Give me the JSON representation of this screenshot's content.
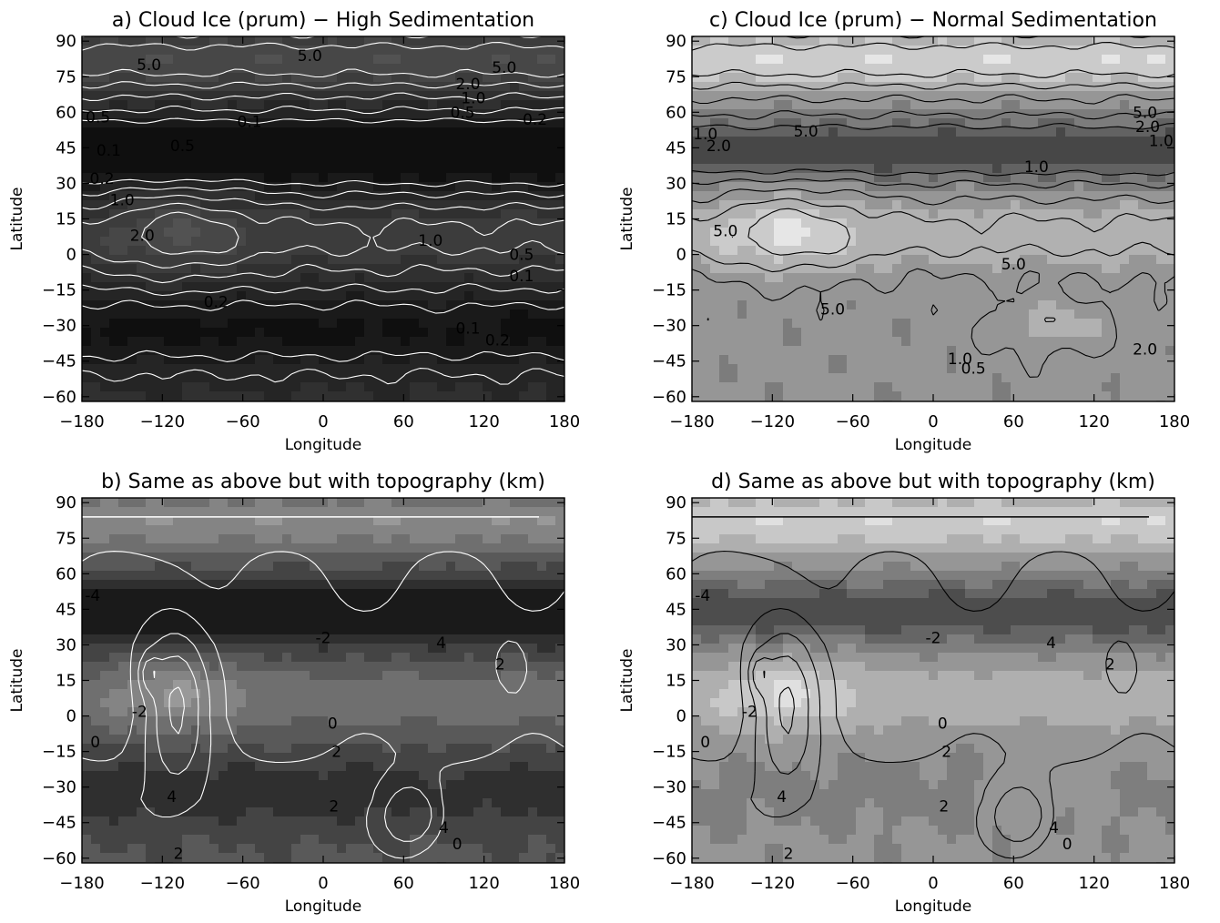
{
  "panels": [
    {
      "title": "a) Cloud Ice (prum) − High Sedimentation",
      "xlabel": "Longitude",
      "ylabel": "Latitude",
      "contour_color": "#ffffff",
      "shade_range": [
        0.06,
        0.32
      ],
      "bias": 0.8,
      "labels": [
        {
          "text": "5.0",
          "lon": -130,
          "lat": 80
        },
        {
          "text": "5.0",
          "lon": -10,
          "lat": 84
        },
        {
          "text": "5.0",
          "lon": 135,
          "lat": 79
        },
        {
          "text": "2.0",
          "lon": 108,
          "lat": 72
        },
        {
          "text": "1.0",
          "lon": 112,
          "lat": 66
        },
        {
          "text": "0.5",
          "lon": 104,
          "lat": 60
        },
        {
          "text": "0.2",
          "lon": 158,
          "lat": 57
        },
        {
          "text": "0.1",
          "lon": -55,
          "lat": 56
        },
        {
          "text": "0.5",
          "lon": -168,
          "lat": 58
        },
        {
          "text": "0.5",
          "lon": -105,
          "lat": 46
        },
        {
          "text": "0.1",
          "lon": -160,
          "lat": 44
        },
        {
          "text": "0.2",
          "lon": -165,
          "lat": 32
        },
        {
          "text": "1.0",
          "lon": -150,
          "lat": 23
        },
        {
          "text": "2.0",
          "lon": -135,
          "lat": 8
        },
        {
          "text": "1.0",
          "lon": 80,
          "lat": 6
        },
        {
          "text": "0.5",
          "lon": 148,
          "lat": 0
        },
        {
          "text": "0.1",
          "lon": 148,
          "lat": -9
        },
        {
          "text": "0.2",
          "lon": -80,
          "lat": -20
        },
        {
          "text": "0.1",
          "lon": 108,
          "lat": -31
        },
        {
          "text": "0.2",
          "lon": 130,
          "lat": -36
        }
      ]
    },
    {
      "title": "c) Cloud Ice (prum) − Normal Sedimentation",
      "xlabel": "Longitude",
      "ylabel": "Latitude",
      "contour_color": "#000000",
      "shade_range": [
        0.28,
        0.9
      ],
      "bias": 0.0,
      "labels": [
        {
          "text": "5.0",
          "lon": -95,
          "lat": 52
        },
        {
          "text": "2.0",
          "lon": -160,
          "lat": 46
        },
        {
          "text": "1.0",
          "lon": -170,
          "lat": 51
        },
        {
          "text": "5.0",
          "lon": 158,
          "lat": 60
        },
        {
          "text": "2.0",
          "lon": 160,
          "lat": 54
        },
        {
          "text": "1.0",
          "lon": 170,
          "lat": 48
        },
        {
          "text": "1.0",
          "lon": 77,
          "lat": 37
        },
        {
          "text": "5.0",
          "lon": -155,
          "lat": 10
        },
        {
          "text": "5.0",
          "lon": 60,
          "lat": -4
        },
        {
          "text": "5.0",
          "lon": -75,
          "lat": -23
        },
        {
          "text": "2.0",
          "lon": 158,
          "lat": -40
        },
        {
          "text": "1.0",
          "lon": 20,
          "lat": -44
        },
        {
          "text": "0.5",
          "lon": 30,
          "lat": -48
        }
      ]
    },
    {
      "title": "b) Same as above but with topography (km)",
      "xlabel": "Longitude",
      "ylabel": "Latitude",
      "contour_color": "#ffffff",
      "shade_range": [
        0.1,
        0.6
      ],
      "bias": 0.6,
      "labels": [
        {
          "text": "-4",
          "lon": -172,
          "lat": 51
        },
        {
          "text": "-2",
          "lon": -137,
          "lat": 2
        },
        {
          "text": "0",
          "lon": -170,
          "lat": -11
        },
        {
          "text": "-2",
          "lon": 0,
          "lat": 33
        },
        {
          "text": "4",
          "lon": 88,
          "lat": 31
        },
        {
          "text": "2",
          "lon": 132,
          "lat": 22
        },
        {
          "text": "0",
          "lon": 7,
          "lat": -3
        },
        {
          "text": "2",
          "lon": 10,
          "lat": -15
        },
        {
          "text": "4",
          "lon": -113,
          "lat": -34
        },
        {
          "text": "2",
          "lon": 8,
          "lat": -38
        },
        {
          "text": "4",
          "lon": 90,
          "lat": -47
        },
        {
          "text": "0",
          "lon": 100,
          "lat": -54
        },
        {
          "text": "2",
          "lon": -108,
          "lat": -58
        }
      ]
    },
    {
      "title": "d) Same as above but with topography (km)",
      "xlabel": "Longitude",
      "ylabel": "Latitude",
      "contour_color": "#000000",
      "shade_range": [
        0.3,
        0.88
      ],
      "bias": 0.15,
      "labels": [
        {
          "text": "-4",
          "lon": -172,
          "lat": 51
        },
        {
          "text": "-2",
          "lon": -137,
          "lat": 2
        },
        {
          "text": "0",
          "lon": -170,
          "lat": -11
        },
        {
          "text": "-2",
          "lon": 0,
          "lat": 33
        },
        {
          "text": "4",
          "lon": 88,
          "lat": 31
        },
        {
          "text": "2",
          "lon": 132,
          "lat": 22
        },
        {
          "text": "0",
          "lon": 7,
          "lat": -3
        },
        {
          "text": "2",
          "lon": 10,
          "lat": -15
        },
        {
          "text": "4",
          "lon": -113,
          "lat": -34
        },
        {
          "text": "2",
          "lon": 8,
          "lat": -38
        },
        {
          "text": "4",
          "lon": 90,
          "lat": -47
        },
        {
          "text": "0",
          "lon": 100,
          "lat": -54
        },
        {
          "text": "2",
          "lon": -108,
          "lat": -58
        }
      ]
    }
  ],
  "chart_data": [
    {
      "type": "heatmap",
      "title": "a) Cloud Ice (prum) − High Sedimentation",
      "xlabel": "Longitude",
      "ylabel": "Latitude",
      "xlim": [
        -180,
        180
      ],
      "ylim": [
        -62,
        92
      ],
      "xticks": [
        -180,
        -120,
        -60,
        0,
        60,
        120,
        180
      ],
      "yticks": [
        90,
        75,
        60,
        45,
        30,
        15,
        0,
        -15,
        -30,
        -45,
        -60
      ],
      "contour_levels": [
        "0.1",
        "0.2",
        "0.5",
        "1.0",
        "2.0",
        "5.0"
      ]
    },
    {
      "type": "heatmap",
      "title": "c) Cloud Ice (prum) − Normal Sedimentation",
      "xlabel": "Longitude",
      "ylabel": "Latitude",
      "xlim": [
        -180,
        180
      ],
      "ylim": [
        -62,
        92
      ],
      "xticks": [
        -180,
        -120,
        -60,
        0,
        60,
        120,
        180
      ],
      "yticks": [
        90,
        75,
        60,
        45,
        30,
        15,
        0,
        -15,
        -30,
        -45,
        -60
      ],
      "contour_levels": [
        "0.5",
        "1.0",
        "2.0",
        "5.0"
      ]
    },
    {
      "type": "heatmap",
      "title": "b) Same as above but with topography (km)",
      "xlabel": "Longitude",
      "ylabel": "Latitude",
      "xlim": [
        -180,
        180
      ],
      "ylim": [
        -62,
        92
      ],
      "xticks": [
        -180,
        -120,
        -60,
        0,
        60,
        120,
        180
      ],
      "yticks": [
        90,
        75,
        60,
        45,
        30,
        15,
        0,
        -15,
        -30,
        -45,
        -60
      ],
      "contour_levels": [
        "-4",
        "-2",
        "0",
        "2",
        "4"
      ]
    },
    {
      "type": "heatmap",
      "title": "d) Same as above but with topography (km)",
      "xlabel": "Longitude",
      "ylabel": "Latitude",
      "xlim": [
        -180,
        180
      ],
      "ylim": [
        -62,
        92
      ],
      "xticks": [
        -180,
        -120,
        -60,
        0,
        60,
        120,
        180
      ],
      "yticks": [
        90,
        75,
        60,
        45,
        30,
        15,
        0,
        -15,
        -30,
        -45,
        -60
      ],
      "contour_levels": [
        "-4",
        "-2",
        "0",
        "2",
        "4"
      ]
    }
  ]
}
